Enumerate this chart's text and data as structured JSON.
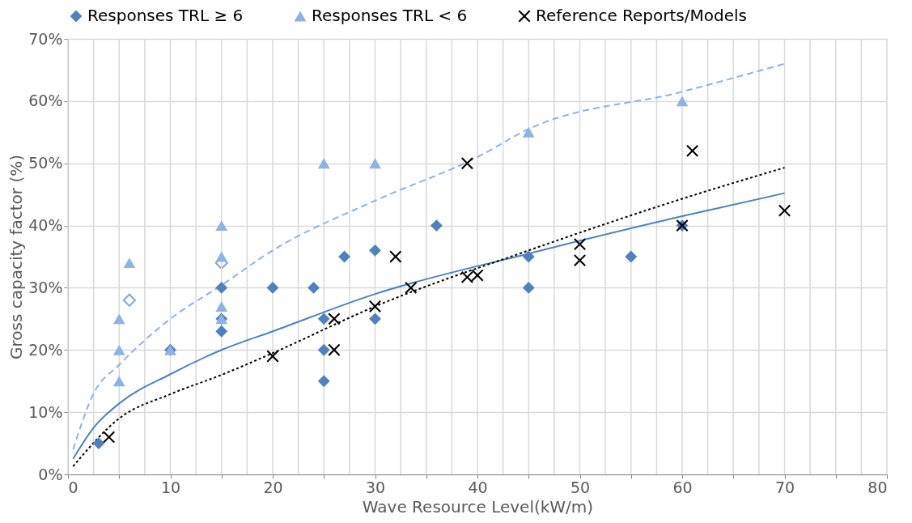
{
  "chart_data": {
    "type": "scatter",
    "xlabel": "Wave Resource Level(kW/m)",
    "ylabel": "Gross capacity factor (%)",
    "xlim": [
      0,
      80
    ],
    "ylim": [
      0,
      70
    ],
    "xticks": [
      0,
      {
        "value": 2.5,
        "label": null
      },
      {
        "value": 5,
        "label": null
      },
      {
        "value": 7.5,
        "label": null
      },
      10,
      {
        "value": 12.5,
        "label": null
      },
      {
        "value": 15,
        "label": null
      },
      {
        "value": 17.5,
        "label": null
      },
      20,
      {
        "value": 22.5,
        "label": null
      },
      {
        "value": 25,
        "label": null
      },
      {
        "value": 27.5,
        "label": null
      },
      30,
      {
        "value": 32.5,
        "label": null
      },
      {
        "value": 35,
        "label": null
      },
      {
        "value": 37.5,
        "label": null
      },
      40,
      {
        "value": 42.5,
        "label": null
      },
      {
        "value": 45,
        "label": null
      },
      {
        "value": 47.5,
        "label": null
      },
      50,
      {
        "value": 52.5,
        "label": null
      },
      {
        "value": 55,
        "label": null
      },
      {
        "value": 57.5,
        "label": null
      },
      60,
      {
        "value": 62.5,
        "label": null
      },
      {
        "value": 65,
        "label": null
      },
      {
        "value": 67.5,
        "label": null
      },
      70,
      {
        "value": 72.5,
        "label": null
      },
      {
        "value": 75,
        "label": null
      },
      {
        "value": 77.5,
        "label": null
      },
      80
    ],
    "yticks": [
      {
        "value": 0,
        "label": "0%"
      },
      {
        "value": 10,
        "label": "10%"
      },
      {
        "value": 20,
        "label": "20%"
      },
      {
        "value": 30,
        "label": "30%"
      },
      {
        "value": 40,
        "label": "40%"
      },
      {
        "value": 50,
        "label": "50%"
      },
      {
        "value": 60,
        "label": "60%"
      },
      {
        "value": 70,
        "label": "70%"
      }
    ],
    "grid": true,
    "legend": "top",
    "series": [
      {
        "name": "Responses TRL ≥ 6",
        "color": "#4f81bd",
        "marker": "diamond",
        "x": [
          3,
          10,
          15,
          15,
          15,
          20,
          24,
          25,
          25,
          25,
          27,
          30,
          30,
          36,
          45,
          45,
          55,
          60
        ],
        "values": [
          5,
          20,
          30,
          25,
          23,
          30,
          30,
          25,
          20,
          15,
          35,
          36,
          25,
          40,
          35,
          30,
          35,
          40
        ]
      },
      {
        "color": "#4f81bd",
        "marker": "diamond",
        "x": [
          6,
          15
        ],
        "values": [
          28,
          34
        ]
      },
      {
        "name": "Responses TRL < 6",
        "color": "#8db3e2",
        "marker": "triangle",
        "x": [
          5,
          5,
          5,
          6,
          10,
          15,
          15,
          15,
          15,
          25,
          30,
          45,
          60
        ],
        "values": [
          25,
          20,
          15,
          34,
          20,
          40,
          35,
          27,
          25,
          50,
          50,
          55,
          60
        ]
      },
      {
        "name": "Reference Reports/Models",
        "color": "#000000",
        "marker": "cross",
        "x": [
          4,
          20,
          26,
          26,
          30,
          32,
          33.5,
          39,
          40,
          39,
          50,
          50,
          60,
          61,
          70
        ],
        "values": [
          6,
          19,
          25,
          20,
          27,
          35,
          30,
          31.7,
          32,
          50,
          37,
          34.4,
          40,
          52,
          42.4
        ]
      },
      {
        "type": "line",
        "color": "#4f81bd",
        "line_style": "solid",
        "x": [
          0.5,
          2.5,
          5,
          10,
          15,
          20,
          30,
          45,
          60,
          70
        ],
        "values": [
          2.5,
          7.5,
          11.4,
          16.1,
          20,
          23,
          29,
          35.5,
          41.5,
          45.2
        ]
      },
      {
        "type": "line",
        "color": "#8db3e2",
        "line_style": "dashed",
        "x": [
          0.5,
          2.5,
          5,
          10,
          15,
          20,
          30,
          40,
          45,
          60,
          70
        ],
        "values": [
          4,
          13,
          17.6,
          25,
          30.4,
          36,
          44,
          51,
          55.5,
          61.5,
          66
        ]
      },
      {
        "type": "line",
        "color": "#000000",
        "line_style": "dotted",
        "x": [
          0.5,
          5,
          10,
          15,
          20,
          30,
          45,
          60,
          70
        ],
        "values": [
          1.3,
          9,
          12.9,
          16,
          19.5,
          27,
          36,
          44.3,
          49.3
        ]
      }
    ]
  }
}
